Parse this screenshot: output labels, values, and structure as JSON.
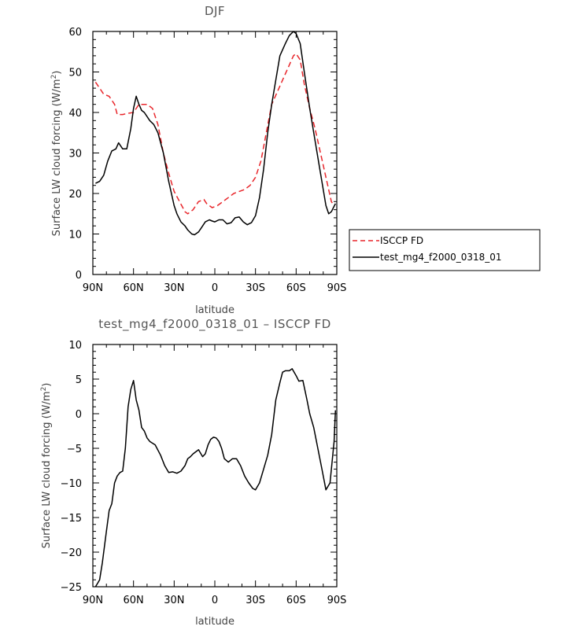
{
  "chart_data": [
    {
      "type": "line",
      "title": "DJF",
      "xlabel": "latitude",
      "ylabel": "Surface LW cloud forcing (W/m",
      "ylabel_sup": "2",
      "ylabel_tail": ")",
      "x_ticks": [
        {
          "value": 90,
          "label": "90N"
        },
        {
          "value": 60,
          "label": "60N"
        },
        {
          "value": 30,
          "label": "30N"
        },
        {
          "value": 0,
          "label": "0"
        },
        {
          "value": -30,
          "label": "30S"
        },
        {
          "value": -60,
          "label": "60S"
        },
        {
          "value": -90,
          "label": "90S"
        }
      ],
      "y_ticks": [
        0,
        10,
        20,
        30,
        40,
        50,
        60
      ],
      "xlim": [
        90,
        -90
      ],
      "ylim": [
        0,
        60
      ],
      "legend_position": "right-bottom outside",
      "series": [
        {
          "name": "ISCCP FD",
          "color": "#e8262b",
          "dash": "dashed",
          "points": [
            [
              88,
              47.5
            ],
            [
              85,
              46
            ],
            [
              82,
              44.5
            ],
            [
              78,
              44
            ],
            [
              74,
              42
            ],
            [
              72,
              39.5
            ],
            [
              68,
              39.5
            ],
            [
              64,
              39.8
            ],
            [
              60,
              40
            ],
            [
              56,
              42
            ],
            [
              50,
              42
            ],
            [
              46,
              41
            ],
            [
              42,
              37
            ],
            [
              38,
              30
            ],
            [
              34,
              25
            ],
            [
              30,
              20.5
            ],
            [
              26,
              18
            ],
            [
              22,
              15.5
            ],
            [
              20,
              15
            ],
            [
              16,
              16
            ],
            [
              12,
              18
            ],
            [
              8,
              18.5
            ],
            [
              6,
              17.5
            ],
            [
              2,
              16.5
            ],
            [
              -2,
              17
            ],
            [
              -6,
              18
            ],
            [
              -10,
              19
            ],
            [
              -14,
              20
            ],
            [
              -18,
              20.5
            ],
            [
              -22,
              21
            ],
            [
              -26,
              22
            ],
            [
              -30,
              24
            ],
            [
              -34,
              28
            ],
            [
              -38,
              35
            ],
            [
              -42,
              42
            ],
            [
              -46,
              45
            ],
            [
              -50,
              48
            ],
            [
              -54,
              51
            ],
            [
              -58,
              54
            ],
            [
              -60,
              54.5
            ],
            [
              -63,
              53
            ],
            [
              -66,
              47
            ],
            [
              -70,
              41
            ],
            [
              -74,
              36
            ],
            [
              -78,
              30
            ],
            [
              -82,
              24
            ],
            [
              -86,
              18
            ],
            [
              -88,
              17
            ]
          ]
        },
        {
          "name": "test_mg4_f2000_0318_01",
          "color": "#000000",
          "dash": "solid",
          "points": [
            [
              88,
              22.5
            ],
            [
              85,
              23
            ],
            [
              82,
              24.5
            ],
            [
              79,
              28
            ],
            [
              76,
              30.5
            ],
            [
              73,
              31
            ],
            [
              71,
              32.5
            ],
            [
              68,
              31
            ],
            [
              65,
              31
            ],
            [
              62,
              36
            ],
            [
              60,
              41
            ],
            [
              58,
              44
            ],
            [
              56,
              42
            ],
            [
              54,
              40.5
            ],
            [
              52,
              40
            ],
            [
              50,
              39
            ],
            [
              48,
              38
            ],
            [
              45,
              37
            ],
            [
              42,
              35
            ],
            [
              38,
              30
            ],
            [
              34,
              23
            ],
            [
              30,
              17
            ],
            [
              28,
              15
            ],
            [
              25,
              13
            ],
            [
              22,
              12
            ],
            [
              20,
              11
            ],
            [
              17,
              10
            ],
            [
              15,
              9.8
            ],
            [
              12,
              10.5
            ],
            [
              10,
              11.5
            ],
            [
              7,
              13
            ],
            [
              4,
              13.5
            ],
            [
              2,
              13.2
            ],
            [
              0,
              13
            ],
            [
              -3,
              13.5
            ],
            [
              -6,
              13.5
            ],
            [
              -9,
              12.5
            ],
            [
              -12,
              12.8
            ],
            [
              -15,
              14
            ],
            [
              -18,
              14.2
            ],
            [
              -21,
              13
            ],
            [
              -24,
              12.3
            ],
            [
              -27,
              12.8
            ],
            [
              -30,
              14.5
            ],
            [
              -33,
              19
            ],
            [
              -36,
              26
            ],
            [
              -39,
              35
            ],
            [
              -42,
              42
            ],
            [
              -45,
              48
            ],
            [
              -48,
              54
            ],
            [
              -52,
              57
            ],
            [
              -55,
              59
            ],
            [
              -58,
              60
            ],
            [
              -60,
              59.5
            ],
            [
              -63,
              57
            ],
            [
              -66,
              50
            ],
            [
              -70,
              41
            ],
            [
              -74,
              33
            ],
            [
              -78,
              25
            ],
            [
              -82,
              17
            ],
            [
              -84,
              15
            ],
            [
              -86,
              15.5
            ],
            [
              -89,
              17.5
            ]
          ]
        }
      ]
    },
    {
      "type": "line",
      "title": "test_mg4_f2000_0318_01 – ISCCP FD",
      "xlabel": "latitude",
      "ylabel": "Surface LW cloud forcing (W/m",
      "ylabel_sup": "2",
      "ylabel_tail": ")",
      "x_ticks": [
        {
          "value": 90,
          "label": "90N"
        },
        {
          "value": 60,
          "label": "60N"
        },
        {
          "value": 30,
          "label": "30N"
        },
        {
          "value": 0,
          "label": "0"
        },
        {
          "value": -30,
          "label": "30S"
        },
        {
          "value": -60,
          "label": "60S"
        },
        {
          "value": -90,
          "label": "90S"
        }
      ],
      "y_ticks": [
        -25,
        -20,
        -15,
        -10,
        -5,
        0,
        5,
        10
      ],
      "xlim": [
        90,
        -90
      ],
      "ylim": [
        -25,
        10
      ],
      "series": [
        {
          "color": "#000000",
          "dash": "solid",
          "points": [
            [
              88,
              -25
            ],
            [
              85,
              -24
            ],
            [
              83,
              -21.5
            ],
            [
              80,
              -17
            ],
            [
              78,
              -14
            ],
            [
              76,
              -13
            ],
            [
              74,
              -10
            ],
            [
              72,
              -9
            ],
            [
              70,
              -8.5
            ],
            [
              68,
              -8.3
            ],
            [
              66,
              -5
            ],
            [
              64,
              1
            ],
            [
              62,
              3.5
            ],
            [
              60,
              4.8
            ],
            [
              58,
              2
            ],
            [
              56,
              0.5
            ],
            [
              54,
              -2
            ],
            [
              52,
              -2.5
            ],
            [
              50,
              -3.5
            ],
            [
              48,
              -4
            ],
            [
              44,
              -4.5
            ],
            [
              40,
              -6
            ],
            [
              37,
              -7.5
            ],
            [
              34,
              -8.5
            ],
            [
              31,
              -8.4
            ],
            [
              28,
              -8.6
            ],
            [
              25,
              -8.3
            ],
            [
              22,
              -7.5
            ],
            [
              20,
              -6.5
            ],
            [
              18,
              -6.2
            ],
            [
              16,
              -5.8
            ],
            [
              14,
              -5.5
            ],
            [
              12,
              -5.2
            ],
            [
              9,
              -6.2
            ],
            [
              7,
              -5.8
            ],
            [
              5,
              -4.5
            ],
            [
              3,
              -3.7
            ],
            [
              1,
              -3.4
            ],
            [
              -1,
              -3.5
            ],
            [
              -3,
              -4
            ],
            [
              -5,
              -5
            ],
            [
              -7,
              -6.5
            ],
            [
              -10,
              -7
            ],
            [
              -13,
              -6.5
            ],
            [
              -16,
              -6.5
            ],
            [
              -19,
              -7.5
            ],
            [
              -22,
              -9
            ],
            [
              -25,
              -10
            ],
            [
              -28,
              -10.8
            ],
            [
              -30,
              -11
            ],
            [
              -33,
              -10
            ],
            [
              -36,
              -8
            ],
            [
              -39,
              -6
            ],
            [
              -42,
              -3
            ],
            [
              -45,
              2
            ],
            [
              -48,
              4.5
            ],
            [
              -50,
              6
            ],
            [
              -52,
              6.2
            ],
            [
              -55,
              6.2
            ],
            [
              -57,
              6.5
            ],
            [
              -60,
              5.5
            ],
            [
              -62,
              4.7
            ],
            [
              -65,
              4.8
            ],
            [
              -68,
              2
            ],
            [
              -70,
              0
            ],
            [
              -73,
              -2
            ],
            [
              -76,
              -5
            ],
            [
              -79,
              -8
            ],
            [
              -82,
              -11
            ],
            [
              -85,
              -10
            ],
            [
              -88,
              -4
            ],
            [
              -89,
              0.5
            ]
          ]
        }
      ]
    }
  ]
}
